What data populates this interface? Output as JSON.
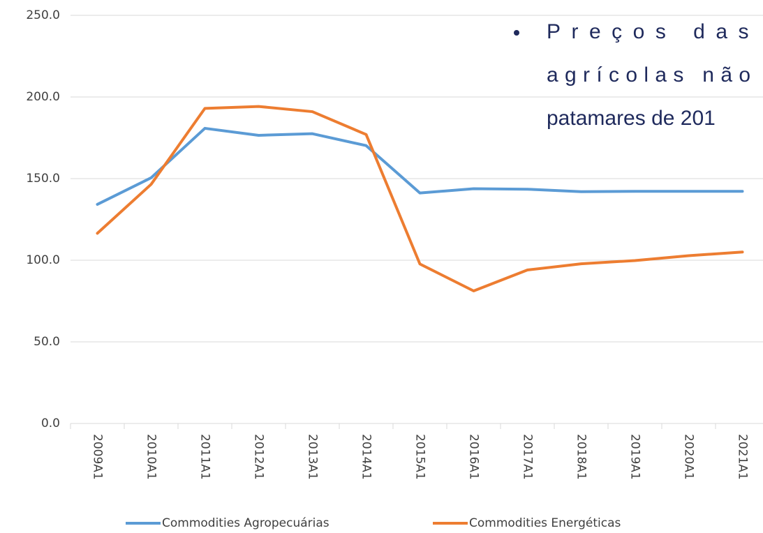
{
  "chart_data": {
    "type": "line",
    "categories": [
      "2009A1",
      "2010A1",
      "2011A1",
      "2012A1",
      "2013A1",
      "2014A1",
      "2015A1",
      "2016A1",
      "2017A1",
      "2018A1",
      "2019A1",
      "2020A1",
      "2021A1"
    ],
    "series": [
      {
        "name": "Commodities Agropecuárias",
        "color": "#5b9bd5",
        "values": [
          134.2,
          150.5,
          180.8,
          176.5,
          177.5,
          170.2,
          141.2,
          143.8,
          143.5,
          142.0,
          142.2,
          142.2,
          142.2
        ]
      },
      {
        "name": "Commodities Energéticas",
        "color": "#ed7d31",
        "values": [
          116.5,
          146.5,
          193.0,
          194.2,
          191.0,
          177.0,
          97.7,
          81.2,
          94.0,
          97.8,
          99.8,
          102.8,
          105.0
        ]
      }
    ],
    "ylim": [
      0,
      250
    ],
    "yticks": [
      {
        "value": 0,
        "label": "0.0"
      },
      {
        "value": 50,
        "label": "50.0"
      },
      {
        "value": 100,
        "label": "100.0"
      },
      {
        "value": 150,
        "label": "150.0"
      },
      {
        "value": 200,
        "label": "200.0"
      },
      {
        "value": 250,
        "label": "250.0"
      }
    ],
    "grid": true,
    "legend": "bottom",
    "annotations": [
      "Preços das co",
      "agrícolas não vo",
      "patamares de 201"
    ]
  }
}
